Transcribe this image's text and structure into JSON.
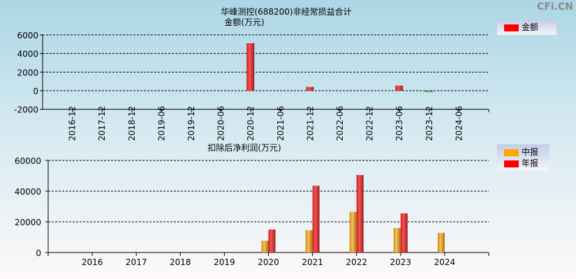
{
  "watermark": "CFi.CN",
  "colors": {
    "red": "#ff0000",
    "orange": "#ffa500",
    "green": "#3a9a3a"
  },
  "chart_data": [
    {
      "type": "bar",
      "title": "华峰测控(688200)非经常损益合计",
      "subtitle": "金额(万元)",
      "categories": [
        "2016-12",
        "2017-12",
        "2018-12",
        "2019-06",
        "2019-12",
        "2020-06",
        "2020-12",
        "2021-06",
        "2021-12",
        "2022-06",
        "2022-12",
        "2023-06",
        "2023-12",
        "2024-06"
      ],
      "series": [
        {
          "name": "金额",
          "values": [
            0,
            0,
            0,
            0,
            0,
            0,
            5100,
            0,
            400,
            0,
            0,
            550,
            -150,
            0
          ]
        }
      ],
      "ylim": [
        -2000,
        6000
      ],
      "yticks": [
        "6000",
        "4000",
        "2000",
        "0",
        "-2000"
      ],
      "grid": true,
      "legend": "top-right"
    },
    {
      "type": "bar",
      "title": "扣除后净利润(万元)",
      "categories": [
        "2016",
        "2017",
        "2018",
        "2019",
        "2020",
        "2021",
        "2022",
        "2023",
        "2024"
      ],
      "series": [
        {
          "name": "中报",
          "values": [
            null,
            null,
            null,
            null,
            7700,
            14500,
            26500,
            16000,
            12800
          ]
        },
        {
          "name": "年报",
          "values": [
            null,
            null,
            null,
            null,
            15000,
            43500,
            50500,
            25500,
            null
          ]
        }
      ],
      "ylim": [
        0,
        60000
      ],
      "yticks": [
        "60000",
        "40000",
        "20000",
        "0"
      ],
      "grid": true,
      "legend": "top-right"
    }
  ]
}
